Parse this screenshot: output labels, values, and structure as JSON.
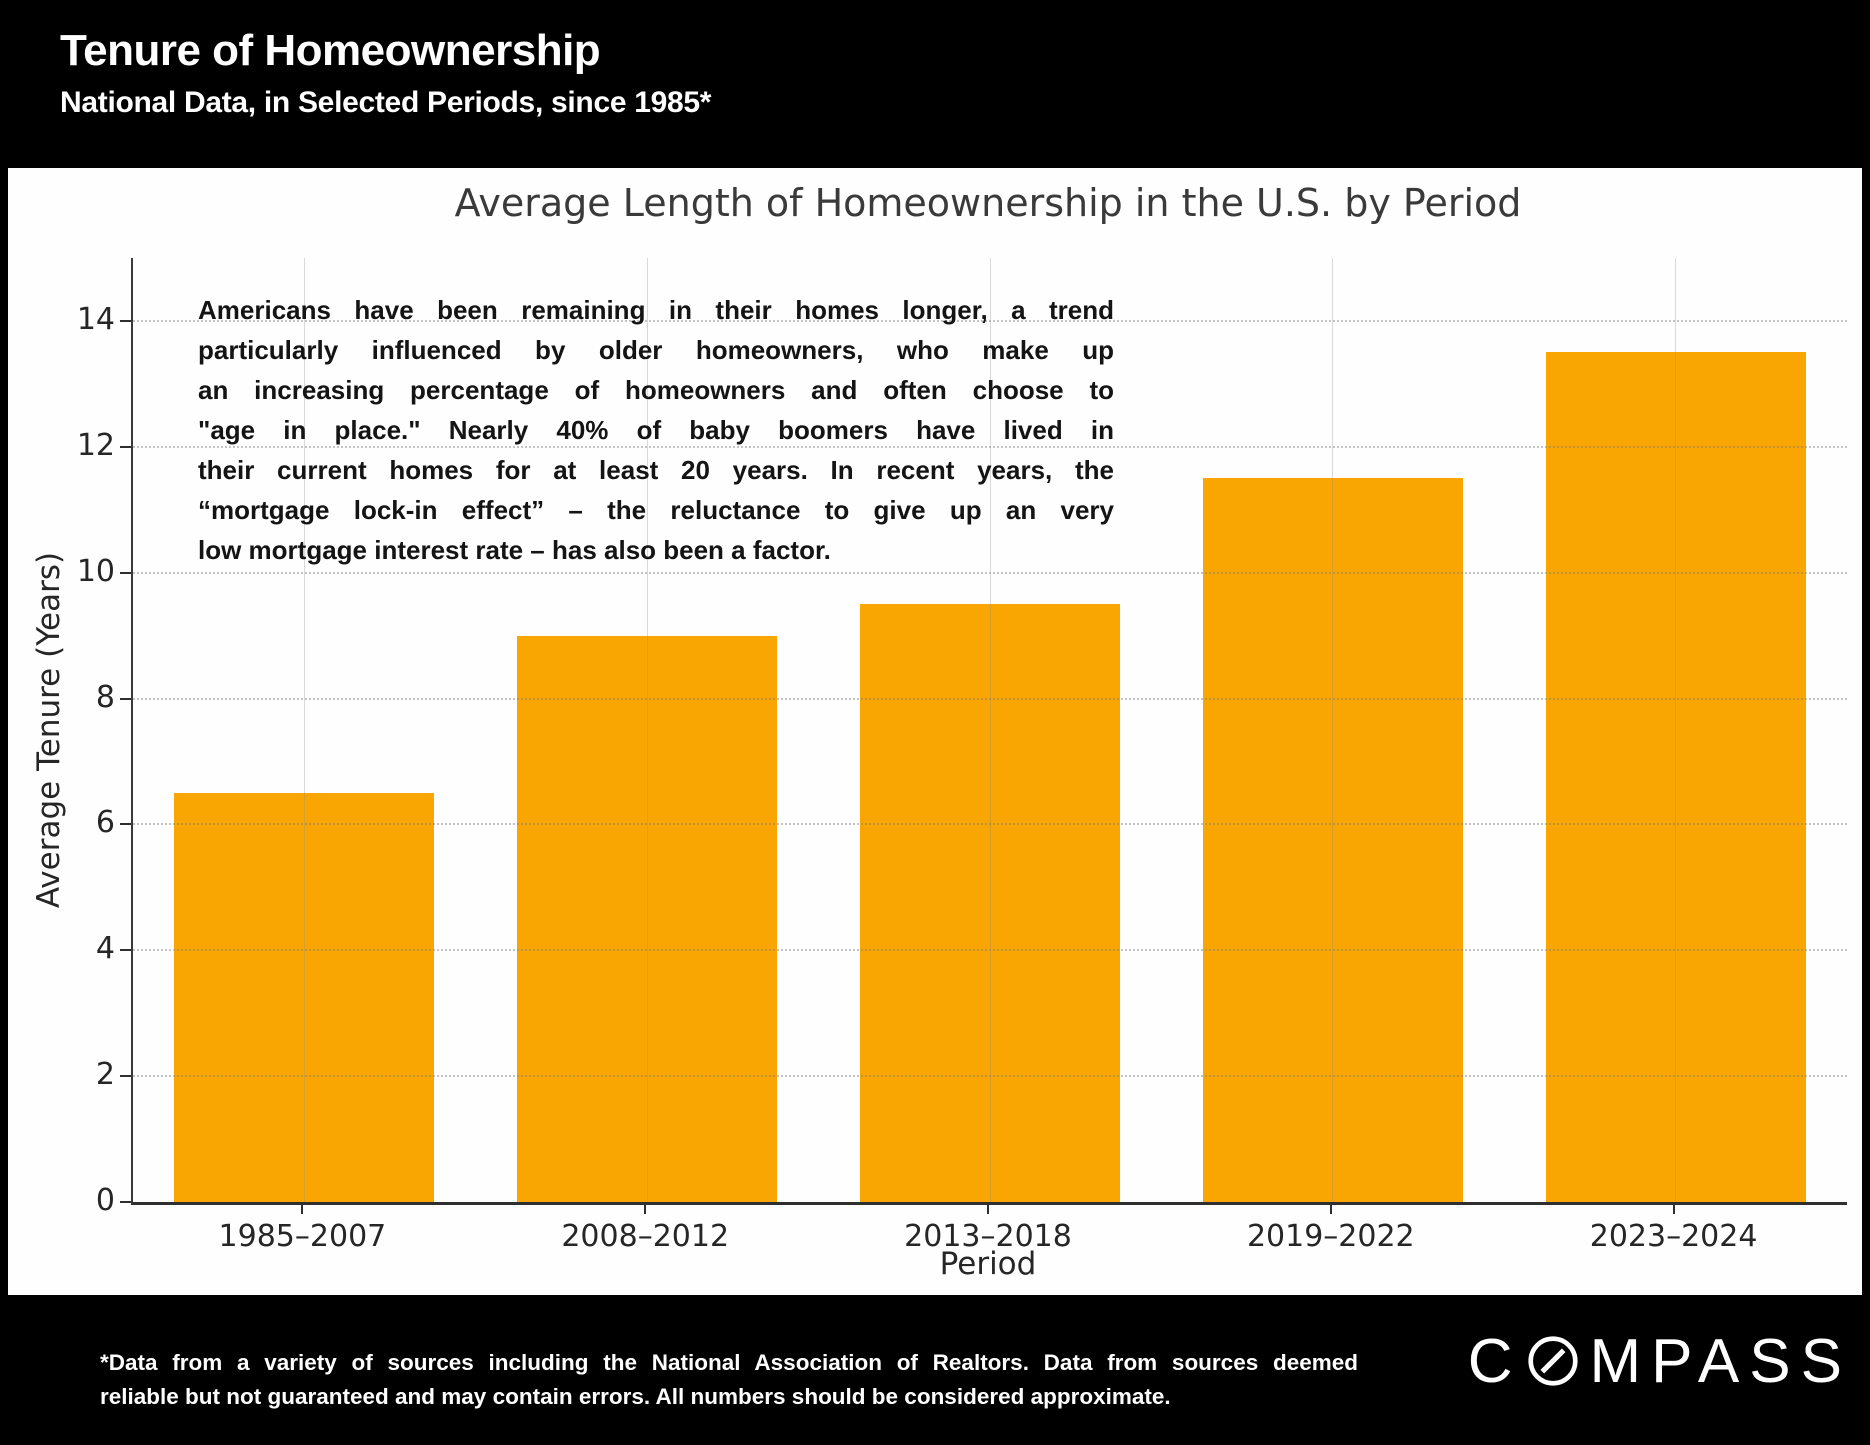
{
  "slide": {
    "title": "Tenure of Homeownership",
    "subtitle": "National Data, in Selected Periods, since 1985*",
    "background_color": "#000000",
    "panel_color": "#fefefe"
  },
  "chart_data": {
    "type": "bar",
    "title": "Average Length of Homeownership in the U.S. by Period",
    "categories": [
      "1985–2007",
      "2008–2012",
      "2013–2018",
      "2019–2022",
      "2023–2024"
    ],
    "values": [
      6.5,
      9,
      9.5,
      11.5,
      13.5
    ],
    "xlabel": "Period",
    "ylabel": "Average Tenure (Years)",
    "ylim": [
      0,
      15
    ],
    "yticks": [
      0,
      2,
      4,
      6,
      8,
      10,
      12,
      14
    ],
    "bar_color": "#F9A603",
    "grid": true,
    "annotation_lines": [
      "Americans have been remaining in their homes longer, a trend",
      "particularly influenced by older homeowners, who make up",
      "an increasing percentage of homeowners and often choose to",
      "\"age in place.\" Nearly 40% of baby boomers have lived in",
      "their current homes for at least 20 years. In recent years, the",
      "“mortgage lock-in effect” – the reluctance to give up an very",
      "low mortgage interest rate – has also been a factor."
    ]
  },
  "footer": {
    "footnote_lines": [
      "*Data from a variety of sources including the National Association of Realtors. Data from sources deemed",
      "reliable but not guaranteed and may contain errors. All numbers should be considered approximate."
    ],
    "brand_c": "C",
    "brand_rest": "MPASS"
  }
}
